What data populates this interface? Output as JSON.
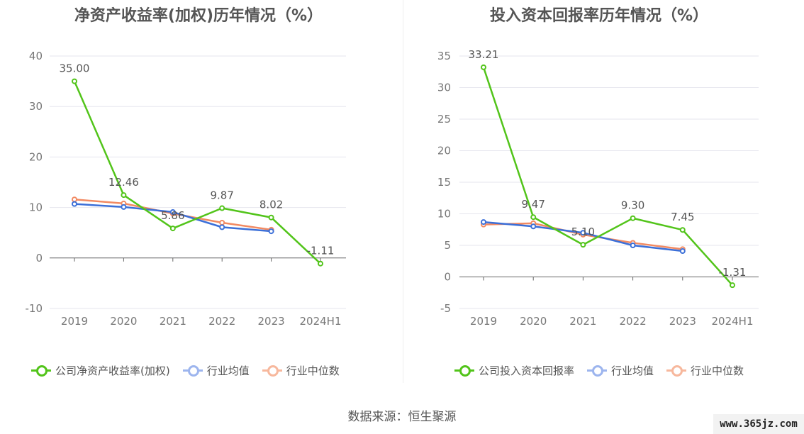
{
  "chart_data": [
    {
      "type": "line",
      "title": "净资产收益率(加权)历年情况（%）",
      "categories": [
        "2019",
        "2020",
        "2021",
        "2022",
        "2023",
        "2024H1"
      ],
      "ylim": [
        -10,
        40
      ],
      "yticks": [
        -10,
        0,
        10,
        20,
        30,
        40
      ],
      "grid": true,
      "legend_position": "bottom",
      "series": [
        {
          "name": "公司净资产收益率(加权)",
          "color": "#52c41a",
          "values": [
            35.0,
            12.46,
            5.86,
            9.87,
            8.02,
            -1.11
          ],
          "labels": [
            "35.00",
            "12.46",
            "5.86",
            "9.87",
            "8.02",
            "-1.11"
          ]
        },
        {
          "name": "行业均值",
          "color": "#3b6fd8",
          "values": [
            10.7,
            10.1,
            9.1,
            6.1,
            5.3,
            null
          ]
        },
        {
          "name": "行业中位数",
          "color": "#f28a62",
          "values": [
            11.6,
            10.8,
            8.8,
            7.0,
            5.6,
            null
          ]
        }
      ]
    },
    {
      "type": "line",
      "title": "投入资本回报率历年情况（%）",
      "categories": [
        "2019",
        "2020",
        "2021",
        "2022",
        "2023",
        "2024H1"
      ],
      "ylim": [
        -5,
        35
      ],
      "yticks": [
        -5,
        0,
        5,
        10,
        15,
        20,
        25,
        30,
        35
      ],
      "grid": true,
      "legend_position": "bottom",
      "series": [
        {
          "name": "公司投入资本回报率",
          "color": "#52c41a",
          "values": [
            33.21,
            9.47,
            5.1,
            9.3,
            7.45,
            -1.31
          ],
          "labels": [
            "33.21",
            "9.47",
            "5.10",
            "9.30",
            "7.45",
            "-1.31"
          ]
        },
        {
          "name": "行业均值",
          "color": "#3b6fd8",
          "values": [
            8.7,
            8.0,
            7.0,
            5.0,
            4.1,
            null
          ]
        },
        {
          "name": "行业中位数",
          "color": "#f28a62",
          "values": [
            8.3,
            8.5,
            6.7,
            5.4,
            4.4,
            null
          ]
        }
      ]
    }
  ],
  "source": "数据来源：恒生聚源",
  "watermark": "www.365jz.com"
}
